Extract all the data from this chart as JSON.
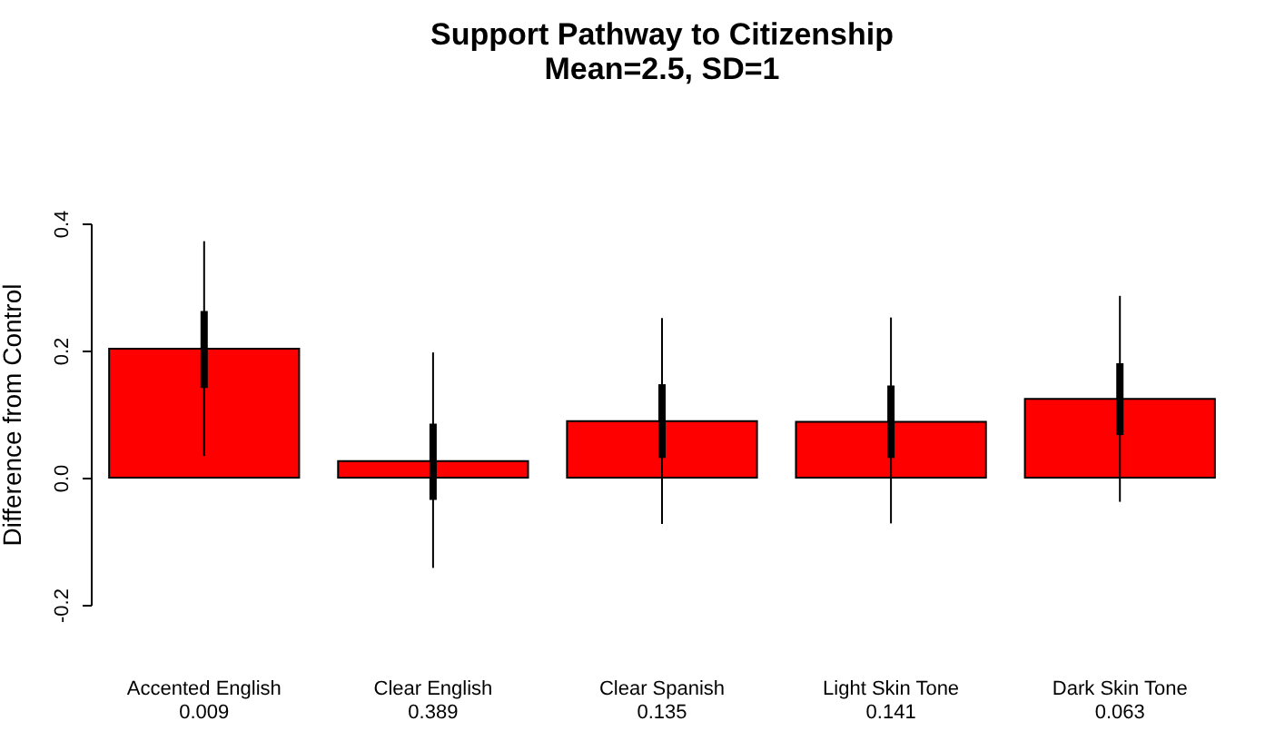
{
  "chart_data": {
    "type": "bar",
    "title": "Support Pathway to Citizenship",
    "subtitle": "Mean=2.5, SD=1",
    "ylabel": "Difference from Control",
    "categories": [
      "Accented English\n0.009",
      "Clear English\n0.389",
      "Clear Spanish\n0.135",
      "Light Skin Tone\n0.141",
      "Dark Skin Tone\n0.063"
    ],
    "series": [
      {
        "color": "#ff0000",
        "values": [
          0.203,
          0.026,
          0.089,
          0.088,
          0.124
        ],
        "errors": [
          [
            0.034,
            0.372
          ],
          [
            -0.142,
            0.197
          ],
          [
            -0.073,
            0.251
          ],
          [
            -0.072,
            0.252
          ],
          [
            -0.038,
            0.286
          ]
        ]
      },
      {
        "color": "#000000",
        "base": [
          0.141,
          -0.035,
          0.031,
          0.031,
          0.067
        ],
        "values": [
          0.121,
          0.12,
          0.116,
          0.114,
          0.113
        ]
      }
    ],
    "ylim": [
      -0.2,
      0.4
    ],
    "yticks": [
      -0.2,
      {
        "value": 0,
        "label": "0.0"
      },
      0.2,
      0.4
    ],
    "grid": false
  }
}
